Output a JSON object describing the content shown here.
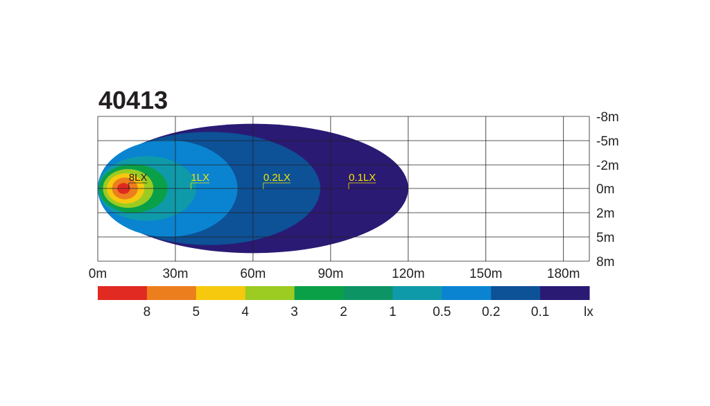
{
  "chart_data": {
    "type": "heatmap",
    "title": "40413",
    "x_ticks": [
      "0m",
      "30m",
      "60m",
      "90m",
      "120m",
      "150m",
      "180m"
    ],
    "x_values": [
      0,
      30,
      60,
      90,
      120,
      150,
      180
    ],
    "xlim": [
      0,
      190
    ],
    "y_ticks": [
      "-8m",
      "-5m",
      "-2m",
      "0m",
      "2m",
      "5m",
      "8m"
    ],
    "y_values": [
      -8,
      -5,
      -2,
      0,
      2,
      5,
      8
    ],
    "zones": [
      {
        "lux": 0.1,
        "color": "#2a1a74",
        "x_start": 0,
        "x_end": 120,
        "half_width": 7
      },
      {
        "lux": 0.2,
        "color": "#0d5197",
        "x_start": 0,
        "x_end": 86,
        "half_width": 6
      },
      {
        "lux": 0.5,
        "color": "#0a84d0",
        "x_start": 0,
        "x_end": 54,
        "half_width": 5
      },
      {
        "lux": 1,
        "color": "#0f9aaa",
        "x_start": 0,
        "x_end": 38,
        "half_width": 3
      },
      {
        "lux": 2,
        "color": "#0aa048",
        "x_start": 0.5,
        "x_end": 27,
        "half_width": 2
      },
      {
        "lux": 3,
        "color": "#9ccb22",
        "x_start": 2,
        "x_end": 21.5,
        "half_width": 1.6
      },
      {
        "lux": 4,
        "color": "#f6c90e",
        "x_start": 3.5,
        "x_end": 18,
        "half_width": 1.25
      },
      {
        "lux": 5,
        "color": "#ec7e1d",
        "x_start": 5.5,
        "x_end": 15.5,
        "half_width": 0.9
      },
      {
        "lux": 8,
        "color": "#e02a22",
        "x_start": 7.5,
        "x_end": 12.5,
        "half_width": 0.45
      }
    ],
    "annotations": [
      {
        "text": "8LX",
        "x": 12,
        "color": "#231f20"
      },
      {
        "text": "1LX",
        "x": 36,
        "color": "#f2e600"
      },
      {
        "text": "0.2LX",
        "x": 64,
        "color": "#f2e600"
      },
      {
        "text": "0.1LX",
        "x": 97,
        "color": "#f2e600"
      }
    ],
    "legend": {
      "unit": "lx",
      "colors": [
        "#e02a22",
        "#ec7e1d",
        "#f6c90e",
        "#9ccb22",
        "#0aa048",
        "#0d9465",
        "#0f9aaa",
        "#0a84d0",
        "#0d5197",
        "#2a1a74"
      ],
      "labels": [
        "8",
        "5",
        "4",
        "3",
        "2",
        "1",
        "0.5",
        "0.2",
        "0.1"
      ]
    },
    "grid": true
  }
}
